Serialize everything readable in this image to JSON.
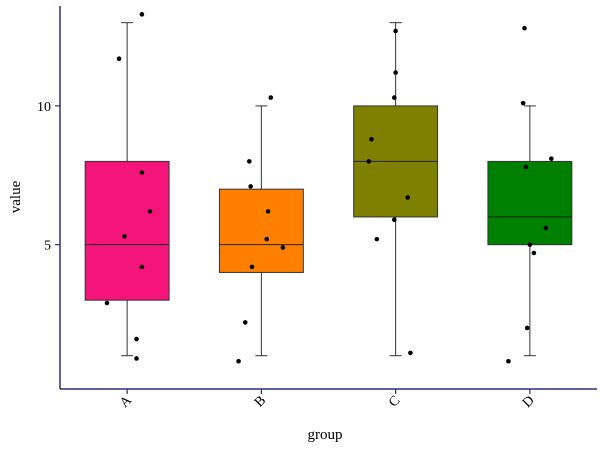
{
  "chart_data": {
    "type": "boxplot",
    "xlabel": "group",
    "ylabel": "value",
    "ylim": [
      -0.2,
      13.6
    ],
    "yticks": [
      5,
      10
    ],
    "categories": [
      "A",
      "B",
      "C",
      "D"
    ],
    "colors": [
      "#f5147a",
      "#ff8000",
      "#808000",
      "#008000"
    ],
    "boxes": [
      {
        "name": "A",
        "whisker_low": 1,
        "q1": 3,
        "median": 5,
        "q3": 8,
        "whisker_high": 13
      },
      {
        "name": "B",
        "whisker_low": 1,
        "q1": 4,
        "median": 5,
        "q3": 7,
        "whisker_high": 10
      },
      {
        "name": "C",
        "whisker_low": 1,
        "q1": 6,
        "median": 8,
        "q3": 10,
        "whisker_high": 13
      },
      {
        "name": "D",
        "whisker_low": 1,
        "q1": 5,
        "median": 6,
        "q3": 8,
        "whisker_high": 10
      }
    ],
    "points": [
      {
        "group": "A",
        "x": 1.11,
        "y": 13.3
      },
      {
        "group": "A",
        "x": 0.94,
        "y": 11.7
      },
      {
        "group": "A",
        "x": 1.11,
        "y": 7.6
      },
      {
        "group": "A",
        "x": 1.17,
        "y": 6.2
      },
      {
        "group": "A",
        "x": 0.98,
        "y": 5.3
      },
      {
        "group": "A",
        "x": 1.11,
        "y": 4.2
      },
      {
        "group": "A",
        "x": 0.85,
        "y": 2.9
      },
      {
        "group": "A",
        "x": 1.07,
        "y": 1.6
      },
      {
        "group": "A",
        "x": 1.07,
        "y": 0.9
      },
      {
        "group": "B",
        "x": 2.07,
        "y": 10.3
      },
      {
        "group": "B",
        "x": 1.91,
        "y": 8.0
      },
      {
        "group": "B",
        "x": 1.92,
        "y": 7.1
      },
      {
        "group": "B",
        "x": 2.05,
        "y": 6.2
      },
      {
        "group": "B",
        "x": 2.04,
        "y": 5.2
      },
      {
        "group": "B",
        "x": 2.16,
        "y": 4.9
      },
      {
        "group": "B",
        "x": 1.93,
        "y": 4.2
      },
      {
        "group": "B",
        "x": 1.88,
        "y": 2.2
      },
      {
        "group": "B",
        "x": 1.83,
        "y": 0.8
      },
      {
        "group": "C",
        "x": 3.0,
        "y": 12.7
      },
      {
        "group": "C",
        "x": 3.0,
        "y": 11.2
      },
      {
        "group": "C",
        "x": 2.99,
        "y": 10.3
      },
      {
        "group": "C",
        "x": 2.82,
        "y": 8.8
      },
      {
        "group": "C",
        "x": 2.8,
        "y": 8.0
      },
      {
        "group": "C",
        "x": 3.09,
        "y": 6.7
      },
      {
        "group": "C",
        "x": 2.99,
        "y": 5.9
      },
      {
        "group": "C",
        "x": 2.86,
        "y": 5.2
      },
      {
        "group": "C",
        "x": 3.11,
        "y": 1.1
      },
      {
        "group": "D",
        "x": 3.96,
        "y": 12.8
      },
      {
        "group": "D",
        "x": 3.95,
        "y": 10.1
      },
      {
        "group": "D",
        "x": 4.16,
        "y": 8.1
      },
      {
        "group": "D",
        "x": 3.97,
        "y": 7.8
      },
      {
        "group": "D",
        "x": 4.12,
        "y": 5.6
      },
      {
        "group": "D",
        "x": 4.0,
        "y": 5.0
      },
      {
        "group": "D",
        "x": 4.03,
        "y": 4.7
      },
      {
        "group": "D",
        "x": 3.98,
        "y": 2.0
      },
      {
        "group": "D",
        "x": 3.84,
        "y": 0.8
      }
    ]
  }
}
